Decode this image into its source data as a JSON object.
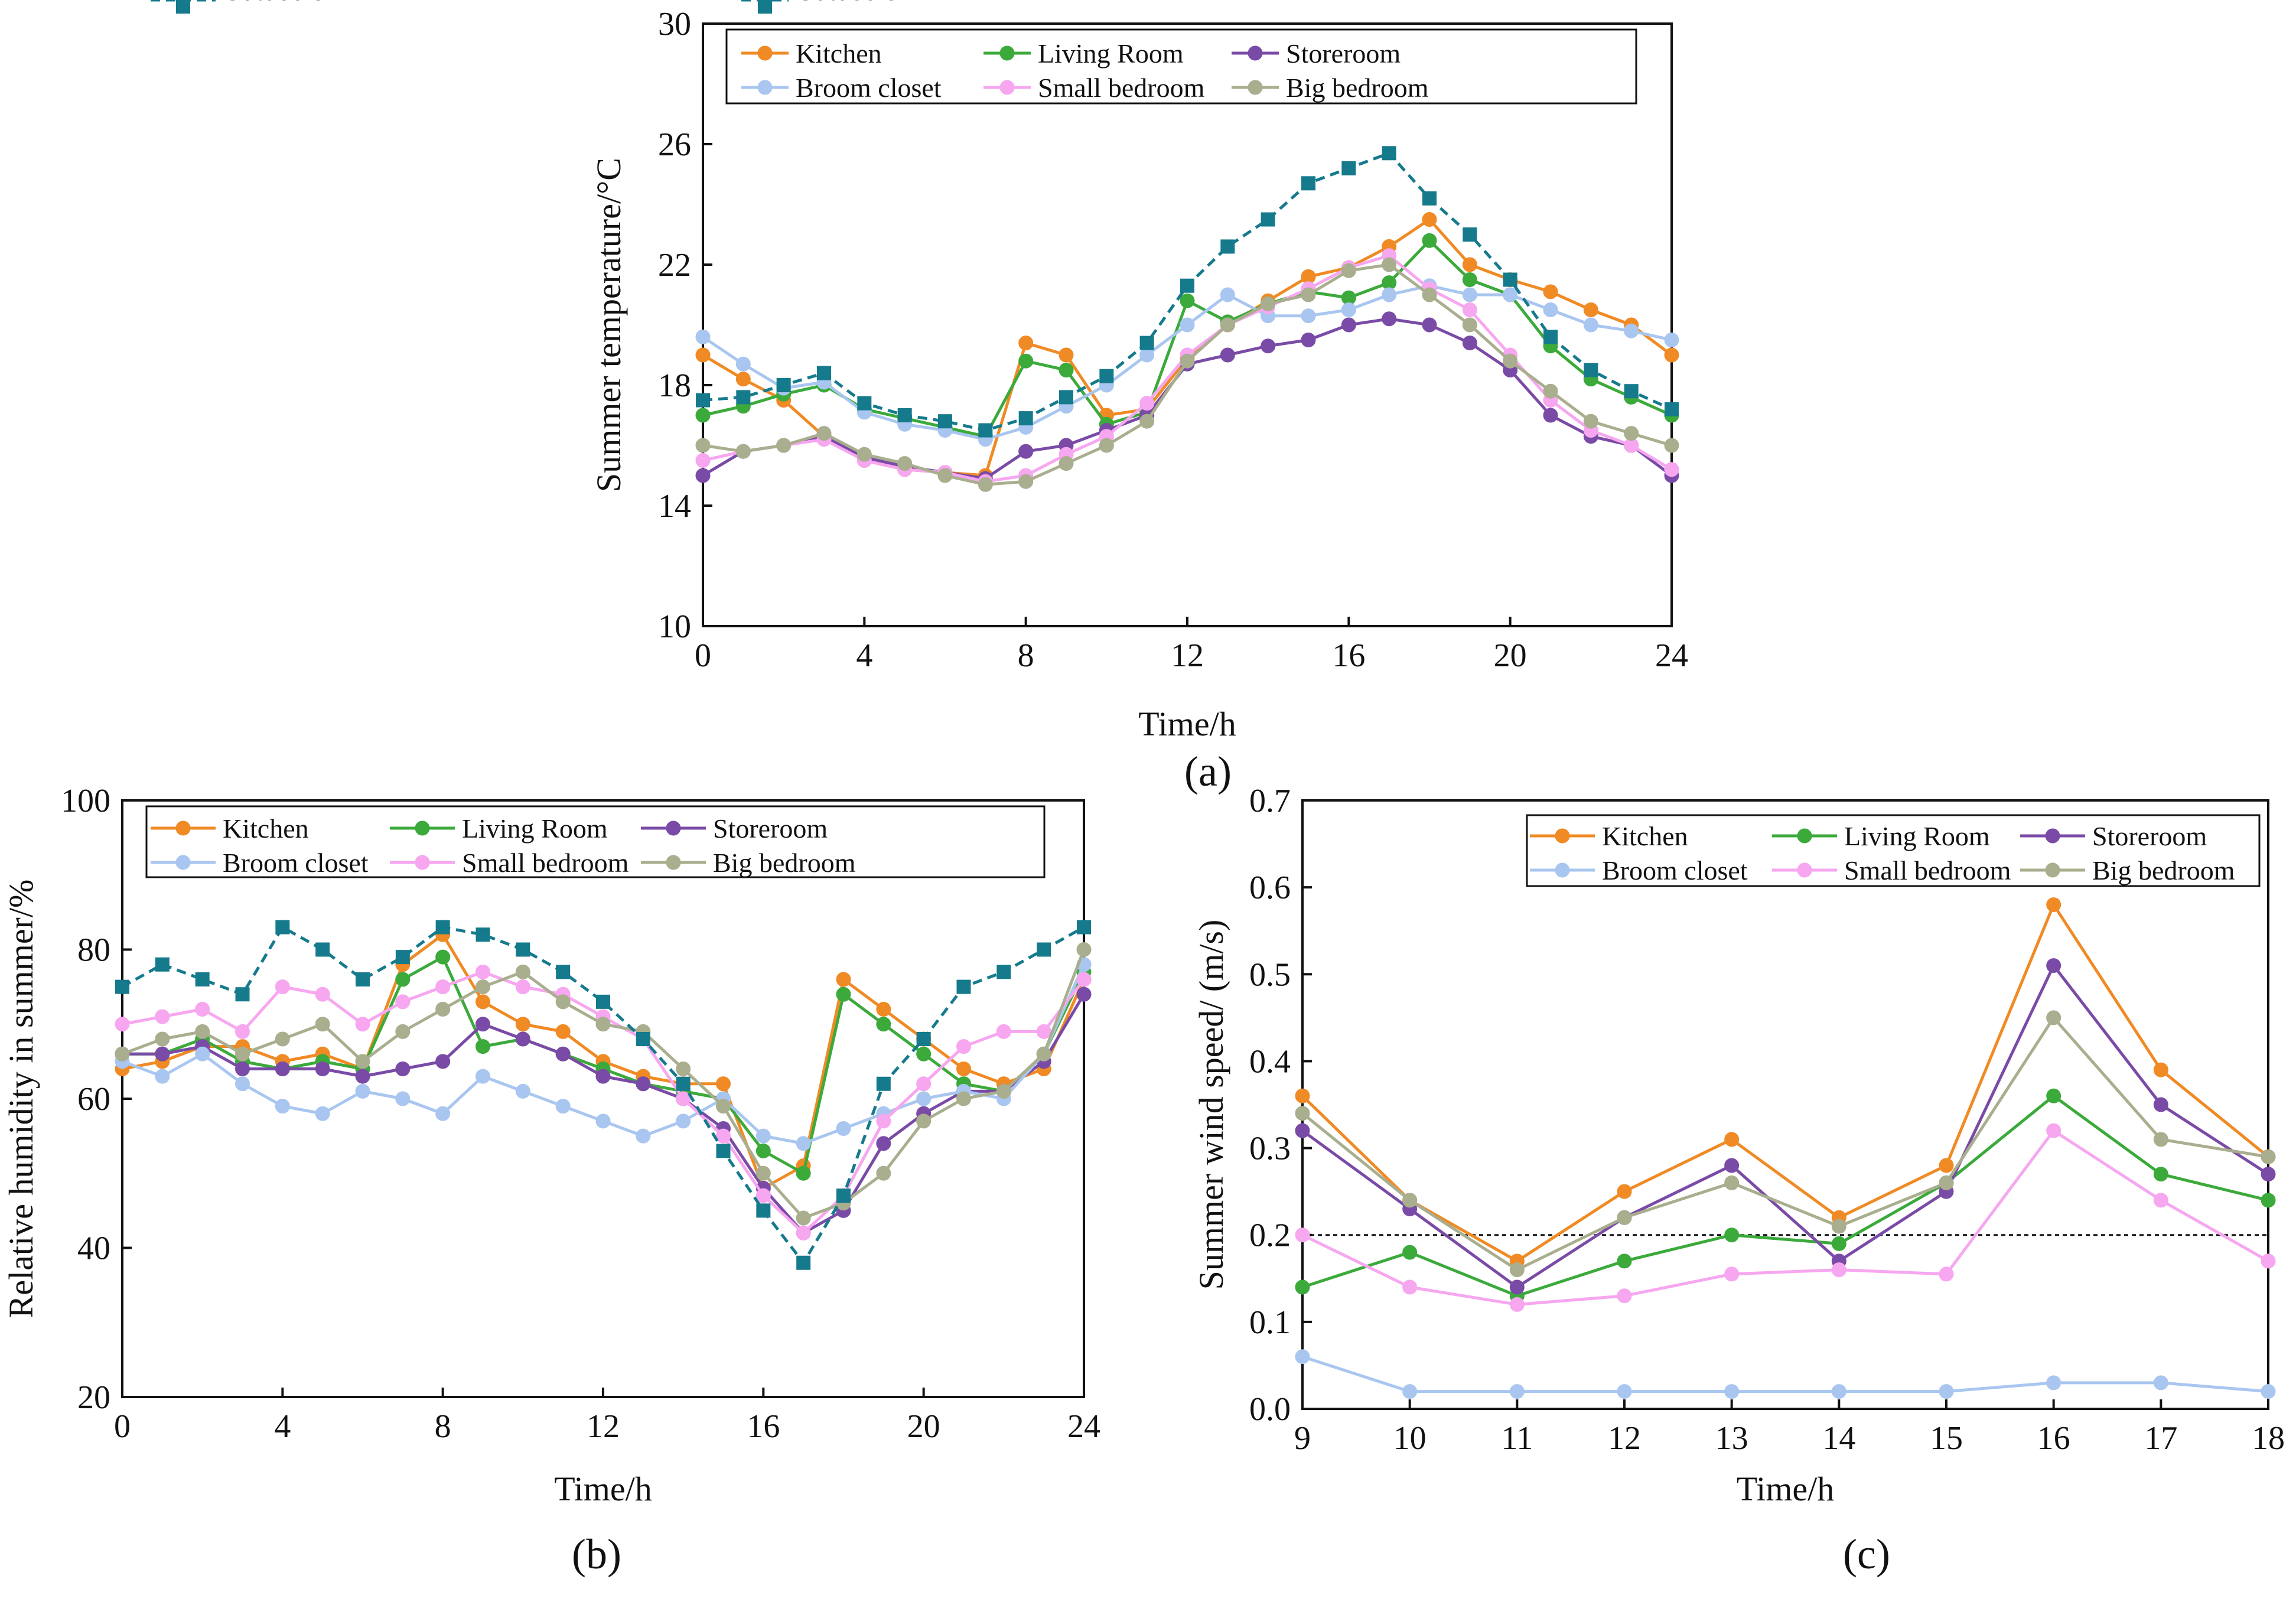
{
  "colors": {
    "Kitchen": "#F08A24",
    "Living Room": "#3BAA3B",
    "Storeroom": "#7A4BA6",
    "Broom closet": "#A9C6F0",
    "Small bedroom": "#F7A6F0",
    "Big bedroom": "#A9AE8E",
    "Outdoors": "#157A8C",
    "axis": "#111111"
  },
  "chart_data": [
    {
      "type": "line",
      "panel_label": "(a)",
      "xlabel": "Time/h",
      "ylabel": "Summer temperature/°C",
      "xlim": [
        0,
        24
      ],
      "ylim": [
        10,
        30
      ],
      "xticks": [
        "0",
        "4",
        "8",
        "12",
        "16",
        "20",
        "24"
      ],
      "yticks": [
        "10",
        "14",
        "18",
        "22",
        "26",
        "30"
      ],
      "legend_position": "top",
      "grid": false,
      "x": [
        0,
        1,
        2,
        3,
        4,
        5,
        6,
        7,
        8,
        9,
        10,
        11,
        12,
        13,
        14,
        15,
        16,
        17,
        18,
        19,
        20,
        21,
        22,
        23,
        24
      ],
      "series": [
        {
          "name": "Kitchen",
          "marker": "circle",
          "values": [
            19.0,
            18.2,
            17.5,
            16.3,
            15.5,
            15.2,
            15.1,
            15.0,
            19.4,
            19.0,
            17.0,
            17.2,
            18.9,
            20.0,
            20.8,
            21.6,
            21.9,
            22.6,
            23.5,
            22.0,
            21.5,
            21.1,
            20.5,
            20.0,
            19.0
          ]
        },
        {
          "name": "Living Room",
          "marker": "circle",
          "values": [
            17.0,
            17.3,
            17.7,
            18.0,
            17.2,
            16.9,
            16.6,
            16.3,
            18.8,
            18.5,
            16.7,
            17.1,
            20.8,
            20.1,
            20.7,
            21.1,
            20.9,
            21.4,
            22.8,
            21.5,
            21.0,
            19.3,
            18.2,
            17.6,
            17.0
          ]
        },
        {
          "name": "Storeroom",
          "marker": "circle",
          "values": [
            15.0,
            15.8,
            16.0,
            16.3,
            15.6,
            15.3,
            15.1,
            14.9,
            15.8,
            16.0,
            16.5,
            17.0,
            18.7,
            19.0,
            19.3,
            19.5,
            20.0,
            20.2,
            20.0,
            19.4,
            18.5,
            17.0,
            16.3,
            16.0,
            15.0
          ]
        },
        {
          "name": "Broom closet",
          "marker": "circle",
          "values": [
            19.6,
            18.7,
            17.9,
            18.1,
            17.1,
            16.7,
            16.5,
            16.2,
            16.6,
            17.3,
            18.0,
            19.0,
            20.0,
            21.0,
            20.3,
            20.3,
            20.5,
            21.0,
            21.3,
            21.0,
            21.0,
            20.5,
            20.0,
            19.8,
            19.5
          ]
        },
        {
          "name": "Small bedroom",
          "marker": "circle",
          "values": [
            15.5,
            15.8,
            16.0,
            16.2,
            15.5,
            15.2,
            15.1,
            14.8,
            15.0,
            15.7,
            16.3,
            17.4,
            19.0,
            20.0,
            20.6,
            21.2,
            21.9,
            22.3,
            21.2,
            20.5,
            19.0,
            17.5,
            16.5,
            16.0,
            15.2
          ]
        },
        {
          "name": "Big bedroom",
          "marker": "circle",
          "values": [
            16.0,
            15.8,
            16.0,
            16.4,
            15.7,
            15.4,
            15.0,
            14.7,
            14.8,
            15.4,
            16.0,
            16.8,
            18.8,
            20.0,
            20.7,
            21.0,
            21.8,
            22.0,
            21.0,
            20.0,
            18.8,
            17.8,
            16.8,
            16.4,
            16.0
          ]
        },
        {
          "name": "Outdoors",
          "marker": "square",
          "dashed": true,
          "values": [
            17.5,
            17.6,
            18.0,
            18.4,
            17.4,
            17.0,
            16.8,
            16.5,
            16.9,
            17.6,
            18.3,
            19.4,
            21.3,
            22.6,
            23.5,
            24.7,
            25.2,
            25.7,
            24.2,
            23.0,
            21.5,
            19.6,
            18.5,
            17.8,
            17.2
          ]
        }
      ]
    },
    {
      "type": "line",
      "panel_label": "(b)",
      "xlabel": "Time/h",
      "ylabel": "Relative humidity in summer/%",
      "xlim": [
        0,
        24
      ],
      "ylim": [
        20,
        100
      ],
      "xticks": [
        "0",
        "4",
        "8",
        "12",
        "16",
        "20",
        "24"
      ],
      "yticks": [
        "20",
        "40",
        "60",
        "80",
        "100"
      ],
      "legend_position": "top",
      "grid": false,
      "x": [
        0,
        1,
        2,
        3,
        4,
        5,
        6,
        7,
        8,
        9,
        10,
        11,
        12,
        13,
        14,
        15,
        16,
        17,
        18,
        19,
        20,
        21,
        22,
        23,
        24
      ],
      "series": [
        {
          "name": "Kitchen",
          "marker": "circle",
          "values": [
            64,
            65,
            67,
            67,
            65,
            66,
            64,
            78,
            82,
            73,
            70,
            69,
            65,
            63,
            62,
            62,
            48,
            51,
            76,
            72,
            68,
            64,
            62,
            64,
            76
          ]
        },
        {
          "name": "Living Room",
          "marker": "circle",
          "values": [
            66,
            66,
            68,
            65,
            64,
            65,
            64,
            76,
            79,
            67,
            68,
            66,
            64,
            62,
            61,
            60,
            53,
            50,
            74,
            70,
            66,
            62,
            61,
            66,
            77
          ]
        },
        {
          "name": "Storeroom",
          "marker": "circle",
          "values": [
            66,
            66,
            67,
            64,
            64,
            64,
            63,
            64,
            65,
            70,
            68,
            66,
            63,
            62,
            60,
            56,
            48,
            42,
            45,
            54,
            58,
            61,
            61,
            65,
            74
          ]
        },
        {
          "name": "Broom closet",
          "marker": "circle",
          "values": [
            65,
            63,
            66,
            62,
            59,
            58,
            61,
            60,
            58,
            63,
            61,
            59,
            57,
            55,
            57,
            60,
            55,
            54,
            56,
            58,
            60,
            61,
            60,
            66,
            78
          ]
        },
        {
          "name": "Small bedroom",
          "marker": "circle",
          "values": [
            70,
            71,
            72,
            69,
            75,
            74,
            70,
            73,
            75,
            77,
            75,
            74,
            71,
            68,
            60,
            55,
            47,
            42,
            47,
            57,
            62,
            67,
            69,
            69,
            76
          ]
        },
        {
          "name": "Big bedroom",
          "marker": "circle",
          "values": [
            66,
            68,
            69,
            66,
            68,
            70,
            65,
            69,
            72,
            75,
            77,
            73,
            70,
            69,
            64,
            59,
            50,
            44,
            46,
            50,
            57,
            60,
            61,
            66,
            80
          ]
        },
        {
          "name": "Outdoors",
          "marker": "square",
          "dashed": true,
          "values": [
            75,
            78,
            76,
            74,
            83,
            80,
            76,
            79,
            83,
            82,
            80,
            77,
            73,
            68,
            62,
            53,
            45,
            38,
            47,
            62,
            68,
            75,
            77,
            80,
            83
          ]
        }
      ]
    },
    {
      "type": "line",
      "panel_label": "(c)",
      "xlabel": "Time/h",
      "ylabel": "Summer wind speed/ (m/s)",
      "xlim": [
        9,
        18
      ],
      "ylim": [
        0.0,
        0.7
      ],
      "xticks": [
        "9",
        "10",
        "11",
        "12",
        "13",
        "14",
        "15",
        "16",
        "17",
        "18"
      ],
      "yticks": [
        "0.0",
        "0.1",
        "0.2",
        "0.3",
        "0.4",
        "0.5",
        "0.6",
        "0.7"
      ],
      "legend_position": "top-right",
      "grid": false,
      "reference_line": 0.2,
      "x": [
        9,
        10,
        11,
        12,
        13,
        14,
        15,
        16,
        17,
        18
      ],
      "series": [
        {
          "name": "Kitchen",
          "marker": "circle",
          "values": [
            0.36,
            0.24,
            0.17,
            0.25,
            0.31,
            0.22,
            0.28,
            0.58,
            0.39,
            0.29
          ]
        },
        {
          "name": "Living Room",
          "marker": "circle",
          "values": [
            0.14,
            0.18,
            0.13,
            0.17,
            0.2,
            0.19,
            0.26,
            0.36,
            0.27,
            0.24
          ]
        },
        {
          "name": "Storeroom",
          "marker": "circle",
          "values": [
            0.32,
            0.23,
            0.14,
            0.22,
            0.28,
            0.17,
            0.25,
            0.51,
            0.35,
            0.27
          ]
        },
        {
          "name": "Broom closet",
          "marker": "circle",
          "values": [
            0.06,
            0.02,
            0.02,
            0.02,
            0.02,
            0.02,
            0.02,
            0.03,
            0.03,
            0.02
          ]
        },
        {
          "name": "Small bedroom",
          "marker": "circle",
          "values": [
            0.2,
            0.14,
            0.12,
            0.13,
            0.155,
            0.16,
            0.155,
            0.32,
            0.24,
            0.17
          ]
        },
        {
          "name": "Big bedroom",
          "marker": "circle",
          "values": [
            0.34,
            0.24,
            0.16,
            0.22,
            0.26,
            0.21,
            0.26,
            0.45,
            0.31,
            0.29
          ]
        }
      ]
    }
  ]
}
